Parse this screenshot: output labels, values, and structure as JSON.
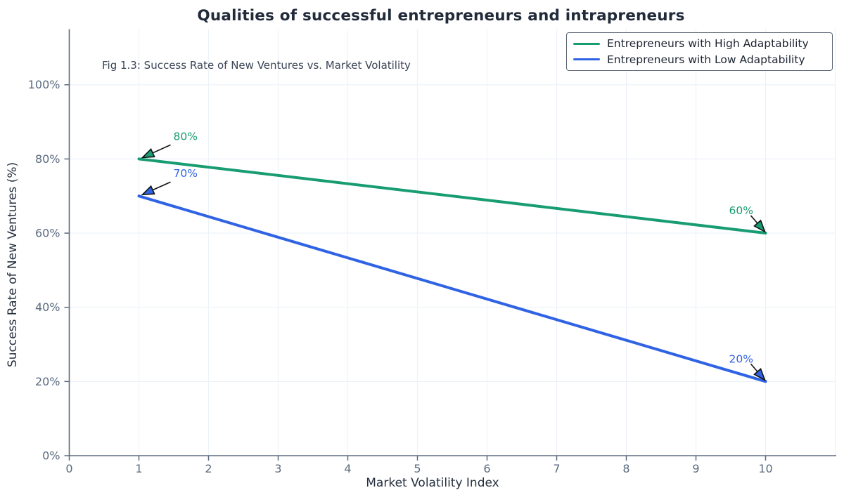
{
  "colors": {
    "green": "#189c72",
    "blue": "#2f63e3",
    "title_text": "#212b3a",
    "subtitle_text": "#3b4656",
    "axis_label_text": "#25303f",
    "tick_text": "#5a6a7e",
    "spine": "#5d6b80",
    "grid": "#edf2f8",
    "arrow_line": "#111111",
    "legend_border": "#5b6474",
    "background": "#ffffff"
  },
  "chart_data": {
    "type": "line",
    "title": "Qualities of successful entrepreneurs and intrapreneurs",
    "subtitle": "Fig 1.3: Success Rate of New Ventures vs. Market Volatility",
    "xlabel": "Market Volatility Index",
    "ylabel": "Success Rate of New Ventures (%)",
    "xlim": [
      0,
      11
    ],
    "ylim": [
      0,
      115
    ],
    "x_ticks": [
      0,
      1,
      2,
      3,
      4,
      5,
      6,
      7,
      8,
      9,
      10
    ],
    "x_tick_labels": [
      "0",
      "1",
      "2",
      "3",
      "4",
      "5",
      "6",
      "7",
      "8",
      "9",
      "10"
    ],
    "y_ticks": [
      0,
      20,
      40,
      60,
      80,
      100
    ],
    "y_tick_labels": [
      "0%",
      "20%",
      "40%",
      "60%",
      "80%",
      "100%"
    ],
    "x_gridlines": [
      1,
      2,
      3,
      4,
      5,
      6,
      7,
      8,
      9,
      10,
      11
    ],
    "y_gridlines": [
      20,
      40,
      60,
      80,
      100
    ],
    "grid": true,
    "legend_position": "upper right",
    "series": [
      {
        "name": "Entrepreneurs with High Adaptability",
        "color": "#189c72",
        "x": [
          1,
          10
        ],
        "y": [
          80,
          60
        ]
      },
      {
        "name": "Entrepreneurs with Low Adaptability",
        "color": "#2f63e3",
        "x": [
          1,
          10
        ],
        "y": [
          70,
          20
        ]
      }
    ],
    "annotations": [
      {
        "label": "80%",
        "x": 1,
        "y": 80,
        "series": 0,
        "direction": "left"
      },
      {
        "label": "70%",
        "x": 1,
        "y": 70,
        "series": 1,
        "direction": "left"
      },
      {
        "label": "60%",
        "x": 10,
        "y": 60,
        "series": 0,
        "direction": "right"
      },
      {
        "label": "20%",
        "x": 10,
        "y": 20,
        "series": 1,
        "direction": "right"
      }
    ]
  }
}
